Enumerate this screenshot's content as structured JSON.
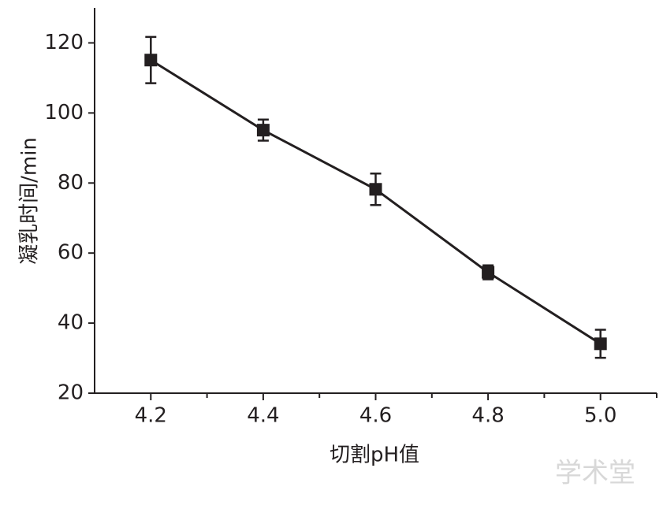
{
  "chart_data": {
    "type": "line",
    "x_label": "切割pH值",
    "y_label": "凝乳时间/min",
    "x": [
      4.2,
      4.4,
      4.6,
      4.8,
      5.0
    ],
    "series": [
      {
        "color": "#231f20",
        "values": [
          115.1,
          95.1,
          78.2,
          54.5,
          34.1
        ],
        "errors": [
          6.6,
          3.0,
          4.5,
          2.0,
          4.0
        ]
      }
    ],
    "xlim": [
      4.1,
      5.1
    ],
    "ylim": [
      20,
      130
    ],
    "xticks": [
      4.2,
      4.4,
      4.6,
      4.8,
      {
        "value": 5,
        "label": "5.0"
      }
    ],
    "xminorticks": [
      4.3,
      4.5,
      4.7,
      4.9,
      5.1
    ],
    "yticks": [
      20,
      40,
      60,
      80,
      100,
      120
    ],
    "watermark": "学术堂"
  }
}
